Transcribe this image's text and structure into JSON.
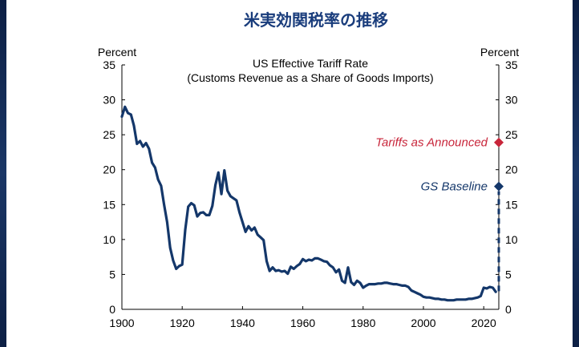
{
  "slide_title": "米実効関税率の推移",
  "chart_data": {
    "type": "line",
    "title": "US Effective Tariff Rate",
    "subtitle": "(Customs Revenue as a Share of Goods Imports)",
    "ylabel_left": "Percent",
    "ylabel_right": "Percent",
    "xlim": [
      1900,
      2025
    ],
    "ylim": [
      0,
      35
    ],
    "x_ticks": [
      1900,
      1920,
      1940,
      1960,
      1980,
      2000,
      2020
    ],
    "y_ticks": [
      0,
      5,
      10,
      15,
      20,
      25,
      30,
      35
    ],
    "line_color": "#14376a",
    "series": [
      {
        "name": "US Effective Tariff Rate",
        "x": [
          1900,
          1901,
          1902,
          1903,
          1904,
          1905,
          1906,
          1907,
          1908,
          1909,
          1910,
          1911,
          1912,
          1913,
          1914,
          1915,
          1916,
          1917,
          1918,
          1919,
          1920,
          1921,
          1922,
          1923,
          1924,
          1925,
          1926,
          1927,
          1928,
          1929,
          1930,
          1931,
          1932,
          1933,
          1934,
          1935,
          1936,
          1937,
          1938,
          1939,
          1940,
          1941,
          1942,
          1943,
          1944,
          1945,
          1946,
          1947,
          1948,
          1949,
          1950,
          1951,
          1952,
          1953,
          1954,
          1955,
          1956,
          1957,
          1958,
          1959,
          1960,
          1961,
          1962,
          1963,
          1964,
          1965,
          1966,
          1967,
          1968,
          1969,
          1970,
          1971,
          1972,
          1973,
          1974,
          1975,
          1976,
          1977,
          1978,
          1979,
          1980,
          1981,
          1982,
          1983,
          1984,
          1985,
          1986,
          1987,
          1988,
          1989,
          1990,
          1991,
          1992,
          1993,
          1994,
          1995,
          1996,
          1997,
          1998,
          1999,
          2000,
          2001,
          2002,
          2003,
          2004,
          2005,
          2006,
          2007,
          2008,
          2009,
          2010,
          2011,
          2012,
          2013,
          2014,
          2015,
          2016,
          2017,
          2018,
          2019,
          2020,
          2021,
          2022,
          2023,
          2024
        ],
        "values": [
          27.6,
          29.0,
          28.1,
          27.9,
          26.3,
          23.7,
          24.1,
          23.3,
          23.8,
          23.0,
          21.0,
          20.3,
          18.6,
          17.7,
          15.0,
          12.5,
          8.8,
          7.0,
          5.8,
          6.2,
          6.4,
          11.4,
          14.7,
          15.2,
          14.9,
          13.3,
          13.8,
          13.9,
          13.5,
          13.5,
          14.8,
          17.8,
          19.6,
          16.5,
          19.9,
          17.0,
          16.2,
          15.9,
          15.6,
          13.9,
          12.5,
          11.1,
          11.9,
          11.3,
          11.7,
          10.7,
          10.3,
          9.9,
          6.9,
          5.5,
          6.0,
          5.5,
          5.6,
          5.4,
          5.5,
          5.1,
          6.1,
          5.8,
          6.2,
          6.5,
          7.2,
          6.9,
          7.1,
          7.0,
          7.3,
          7.3,
          7.1,
          6.9,
          6.8,
          6.3,
          6.0,
          5.3,
          5.7,
          4.1,
          3.8,
          6.0,
          3.9,
          3.5,
          4.1,
          3.8,
          3.1,
          3.4,
          3.6,
          3.6,
          3.6,
          3.7,
          3.7,
          3.8,
          3.8,
          3.7,
          3.6,
          3.6,
          3.5,
          3.4,
          3.4,
          3.2,
          2.7,
          2.5,
          2.3,
          2.1,
          1.8,
          1.7,
          1.7,
          1.6,
          1.5,
          1.5,
          1.4,
          1.4,
          1.3,
          1.3,
          1.3,
          1.4,
          1.4,
          1.4,
          1.4,
          1.5,
          1.5,
          1.6,
          1.7,
          1.9,
          3.1,
          3.0,
          3.2,
          3.1,
          2.5
        ]
      }
    ],
    "markers": [
      {
        "label": "Tariffs as Announced",
        "x": 2025,
        "y": 23.9,
        "color": "#c8253a",
        "shape": "diamond",
        "label_style": "italic"
      },
      {
        "label": "GS Baseline",
        "x": 2025,
        "y": 17.6,
        "color": "#14376a",
        "shape": "diamond",
        "label_style": "italic",
        "dashed_from_y": 2.6
      }
    ]
  }
}
